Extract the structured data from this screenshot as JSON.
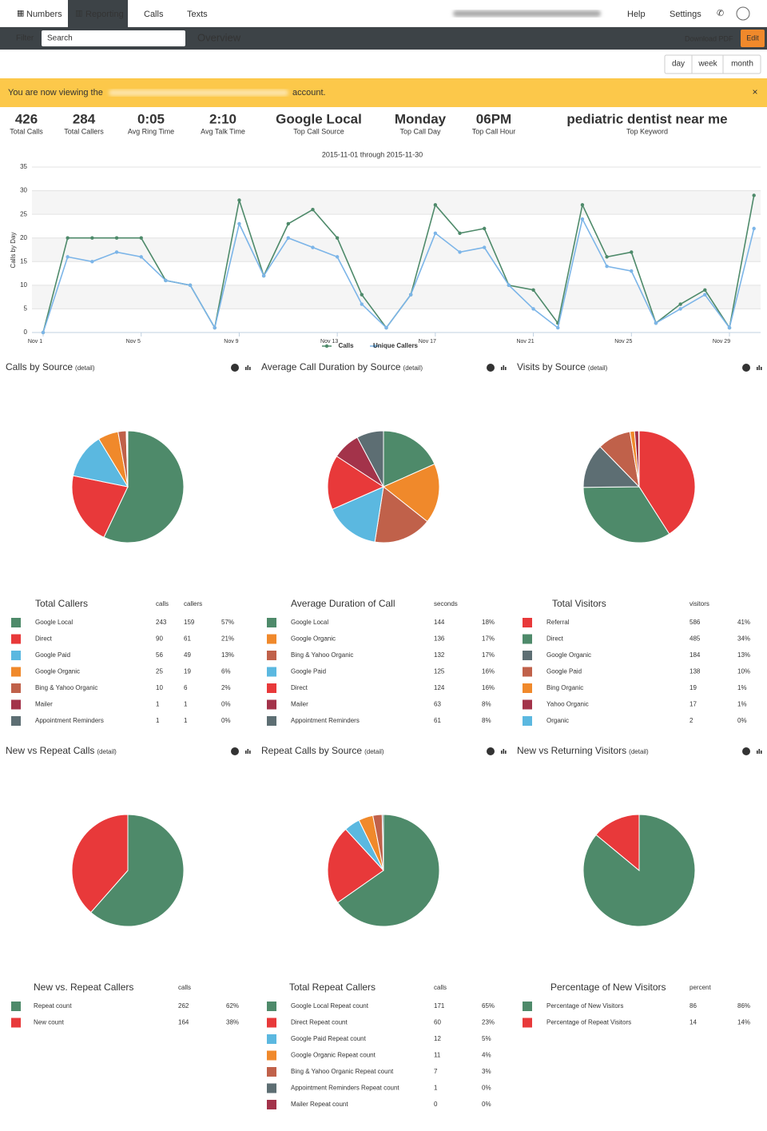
{
  "nav": {
    "items": [
      "Numbers",
      "Reporting",
      "Calls",
      "Texts"
    ],
    "help": "Help",
    "settings": "Settings"
  },
  "toolbar": {
    "filter": "Filter",
    "search_placeholder": "Search",
    "title": "Overview",
    "download": "Download PDF",
    "edit": "Edit"
  },
  "range_buttons": [
    "day",
    "week",
    "month"
  ],
  "banner": {
    "before": "You are now viewing the",
    "after": "account.",
    "close": "×"
  },
  "stats": [
    {
      "value": 426,
      "label": "Total Calls"
    },
    {
      "value": 284,
      "label": "Total Callers"
    },
    {
      "value": "0:05",
      "label": "Avg Ring Time"
    },
    {
      "value": "2:10",
      "label": "Avg Talk Time"
    },
    {
      "value": "Google Local",
      "label": "Top Call Source"
    },
    {
      "value": "Monday",
      "label": "Top Call Day"
    },
    {
      "value": "06PM",
      "label": "Top Call Hour"
    },
    {
      "value": "pediatric dentist near me",
      "label": "Top Keyword"
    }
  ],
  "chart_data": {
    "type": "line",
    "subtitle": "2015-11-01 through 2015-11-30",
    "y_label": "Calls by Day",
    "categories": [
      "Nov 1",
      null,
      null,
      null,
      "Nov 5",
      null,
      null,
      null,
      "Nov 9",
      null,
      null,
      null,
      "Nov 13",
      null,
      null,
      null,
      "Nov 17",
      null,
      null,
      null,
      "Nov 21",
      null,
      null,
      null,
      "Nov 25",
      null,
      null,
      null,
      "Nov 29",
      null
    ],
    "series": [
      {
        "name": "Calls",
        "color": "#4e8a6a",
        "values": [
          0,
          20,
          20,
          20,
          20,
          11,
          10,
          1,
          28,
          12,
          23,
          26,
          20,
          8,
          1,
          8,
          27,
          21,
          22,
          10,
          9,
          2,
          27,
          16,
          17,
          2,
          6,
          9,
          1,
          29
        ]
      },
      {
        "name": "Unique Callers",
        "color": "#7cb5e8",
        "values": [
          0,
          16,
          15,
          17,
          16,
          11,
          10,
          1,
          23,
          12,
          20,
          18,
          16,
          6,
          1,
          8,
          21,
          17,
          18,
          10,
          5,
          1,
          24,
          14,
          13,
          2,
          5,
          8,
          1,
          22
        ]
      }
    ],
    "ylim": [
      0,
      35
    ],
    "yticks": [
      0,
      5,
      10,
      15,
      20,
      25,
      30,
      35
    ],
    "grid": true
  },
  "panels": [
    {
      "title": "Calls by Source",
      "detail": "(detail)",
      "legend_title": "Total Callers",
      "columns": [
        "calls",
        "callers"
      ],
      "rows": [
        {
          "name": "Google Local",
          "color": "#4e8a6a",
          "values": [
            243,
            159
          ],
          "pct": "57%"
        },
        {
          "name": "Direct",
          "color": "#e8393a",
          "values": [
            90,
            61
          ],
          "pct": "21%"
        },
        {
          "name": "Google Paid",
          "color": "#5bb8e0",
          "values": [
            56,
            49
          ],
          "pct": "13%"
        },
        {
          "name": "Google Organic",
          "color": "#f0892b",
          "values": [
            25,
            19
          ],
          "pct": "6%"
        },
        {
          "name": "Bing & Yahoo Organic",
          "color": "#c0614a",
          "values": [
            10,
            6
          ],
          "pct": "2%"
        },
        {
          "name": "Mailer",
          "color": "#a3334a",
          "values": [
            1,
            1
          ],
          "pct": "0%"
        },
        {
          "name": "Appointment Reminders",
          "color": "#5d6e73",
          "values": [
            1,
            1
          ],
          "pct": "0%"
        }
      ]
    },
    {
      "title": "Average Call Duration by Source",
      "detail": "(detail)",
      "legend_title": "Average Duration of Call",
      "columns": [
        "seconds"
      ],
      "rows": [
        {
          "name": "Google Local",
          "color": "#4e8a6a",
          "values": [
            144
          ],
          "pct": "18%"
        },
        {
          "name": "Google Organic",
          "color": "#f0892b",
          "values": [
            136
          ],
          "pct": "17%"
        },
        {
          "name": "Bing & Yahoo Organic",
          "color": "#c0614a",
          "values": [
            132
          ],
          "pct": "17%"
        },
        {
          "name": "Google Paid",
          "color": "#5bb8e0",
          "values": [
            125
          ],
          "pct": "16%"
        },
        {
          "name": "Direct",
          "color": "#e8393a",
          "values": [
            124
          ],
          "pct": "16%"
        },
        {
          "name": "Mailer",
          "color": "#a3334a",
          "values": [
            63
          ],
          "pct": "8%"
        },
        {
          "name": "Appointment Reminders",
          "color": "#5d6e73",
          "values": [
            61
          ],
          "pct": "8%"
        }
      ]
    },
    {
      "title": "Visits by Source",
      "detail": "(detail)",
      "legend_title": "Total Visitors",
      "columns": [
        "visitors"
      ],
      "rows": [
        {
          "name": "Referral",
          "color": "#e8393a",
          "values": [
            586
          ],
          "pct": "41%"
        },
        {
          "name": "Direct",
          "color": "#4e8a6a",
          "values": [
            485
          ],
          "pct": "34%"
        },
        {
          "name": "Google Organic",
          "color": "#5d6e73",
          "values": [
            184
          ],
          "pct": "13%"
        },
        {
          "name": "Google Paid",
          "color": "#c0614a",
          "values": [
            138
          ],
          "pct": "10%"
        },
        {
          "name": "Bing Organic",
          "color": "#f0892b",
          "values": [
            19
          ],
          "pct": "1%"
        },
        {
          "name": "Yahoo Organic",
          "color": "#a3334a",
          "values": [
            17
          ],
          "pct": "1%"
        },
        {
          "name": "Organic",
          "color": "#5bb8e0",
          "values": [
            2
          ],
          "pct": "0%"
        }
      ]
    },
    {
      "title": "New vs Repeat Calls",
      "detail": "(detail)",
      "legend_title": "New vs. Repeat Callers",
      "columns": [
        "calls"
      ],
      "rows": [
        {
          "name": "Repeat count",
          "color": "#4e8a6a",
          "values": [
            262
          ],
          "pct": "62%"
        },
        {
          "name": "New count",
          "color": "#e8393a",
          "values": [
            164
          ],
          "pct": "38%"
        }
      ]
    },
    {
      "title": "Repeat Calls by Source",
      "detail": "(detail)",
      "legend_title": "Total Repeat Callers",
      "columns": [
        "calls"
      ],
      "rows": [
        {
          "name": "Google Local Repeat count",
          "color": "#4e8a6a",
          "values": [
            171
          ],
          "pct": "65%"
        },
        {
          "name": "Direct Repeat count",
          "color": "#e8393a",
          "values": [
            60
          ],
          "pct": "23%"
        },
        {
          "name": "Google Paid Repeat count",
          "color": "#5bb8e0",
          "values": [
            12
          ],
          "pct": "5%"
        },
        {
          "name": "Google Organic Repeat count",
          "color": "#f0892b",
          "values": [
            11
          ],
          "pct": "4%"
        },
        {
          "name": "Bing & Yahoo Organic Repeat count",
          "color": "#c0614a",
          "values": [
            7
          ],
          "pct": "3%"
        },
        {
          "name": "Appointment Reminders Repeat count",
          "color": "#5d6e73",
          "values": [
            1
          ],
          "pct": "0%"
        },
        {
          "name": "Mailer Repeat count",
          "color": "#a3334a",
          "values": [
            0
          ],
          "pct": "0%"
        }
      ]
    },
    {
      "title": "New vs Returning Visitors",
      "detail": "(detail)",
      "legend_title": "Percentage of New Visitors",
      "columns": [
        "percent"
      ],
      "rows": [
        {
          "name": "Percentage of New Visitors",
          "color": "#4e8a6a",
          "values": [
            86
          ],
          "pct": "86%"
        },
        {
          "name": "Percentage of Repeat Visitors",
          "color": "#e8393a",
          "values": [
            14
          ],
          "pct": "14%"
        }
      ]
    }
  ]
}
